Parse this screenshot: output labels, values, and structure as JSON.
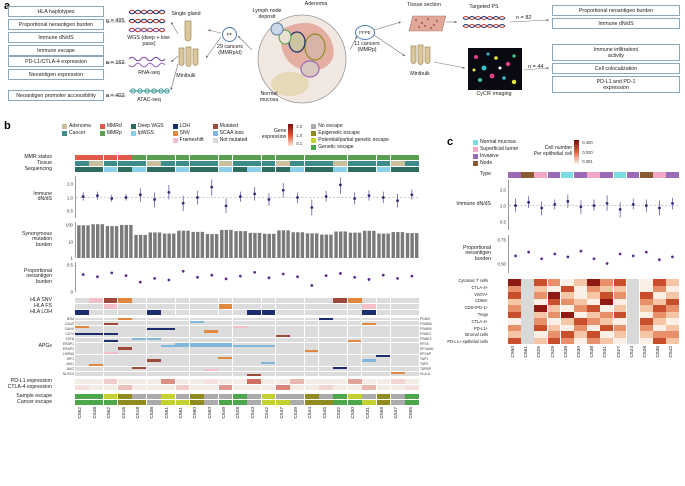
{
  "panel_a": {
    "label": "a",
    "wgs_outputs": [
      "HLA haplotypes",
      "Proportional neoantigen burden",
      "Immune dN/dS",
      "Immune escape"
    ],
    "wgs_n": "n = 495",
    "wgs_method": "WGS (deep + low-pass)",
    "rna_outputs": [
      "PD-L1/CTLA-4 expression",
      "Neoantigen expression"
    ],
    "rna_n": "n = 162",
    "rna_method": "RNA-seq",
    "atac_outputs": [
      "Neoantigen promoter accessibility"
    ],
    "atac_n": "n = 402",
    "atac_method": "ATAC-seq",
    "single_gland": "Single gland",
    "minibulk_left": "Minibulk",
    "ff": "FF",
    "ff_cancers": "29 cancers\n(MMRp/d)",
    "adenoma": "Adenoma",
    "lymph_node": "Lymph node\ndeposit",
    "normal_mucosa": "Normal\nmucosa",
    "ffpe": "FFPE",
    "ffpe_cancers": "11 cancers\n(MMRp)",
    "tissue_section": "Tissue section",
    "minibulk_right": "Minibulk",
    "targeted_ps": "Targeted PS",
    "ps_n": "n = 82",
    "ps_outputs": [
      "Proportional neoantigen burden",
      "Immune dN/dS"
    ],
    "cycif": "CyCIF imaging",
    "cycif_n": "n = 44",
    "cycif_outputs": [
      "Immune infiltration/\nactivity",
      "Cell colocalization",
      "PD-L1 and PD-1\nexpression"
    ]
  },
  "panel_b": {
    "label": "b",
    "palette": {
      "adenoma": "#c9bf9c",
      "cancer": "#3d8c8c",
      "mmrd": "#e0584a",
      "mmrp": "#5ba052",
      "deep": "#2f6b5e",
      "lp": "#8ad0e8",
      "loh": "#1b2e6b",
      "snv": "#e08840",
      "fs": "#f2bfc9",
      "mut": "#9e4a3a",
      "scaa": "#7fb8dc",
      "notmut": "#dcdcdc",
      "none": "#ababab",
      "epi": "#8f8b1e",
      "partial": "#c3d232",
      "genetic": "#4ca64c"
    },
    "legend_groups": [
      [
        {
          "label": "Adenoma",
          "color": "#c9bf9c"
        },
        {
          "label": "Cancer",
          "color": "#3d8c8c"
        }
      ],
      [
        {
          "label": "MMRd",
          "color": "#e0584a"
        },
        {
          "label": "MMRp",
          "color": "#5ba052"
        }
      ],
      [
        {
          "label": "Deep WGS",
          "color": "#2f6b5e"
        },
        {
          "label": "lpWGS",
          "color": "#8ad0e8"
        }
      ],
      [
        {
          "label": "LOH",
          "color": "#1b2e6b"
        },
        {
          "label": "SNV",
          "color": "#e08840"
        },
        {
          "label": "Frameshift",
          "color": "#f2bfc9"
        }
      ],
      [
        {
          "label": "Mutated",
          "color": "#9e4a3a"
        },
        {
          "label": "SCAA loss",
          "color": "#7fb8dc"
        },
        {
          "label": "Not mutated",
          "color": "#dcdcdc"
        }
      ]
    ],
    "escape_legend": [
      {
        "label": "No escape",
        "color": "#ababab"
      },
      {
        "label": "Epigenetic escape",
        "color": "#8f8b1e"
      },
      {
        "label": "Potential/partial genetic escape",
        "color": "#c3d232"
      },
      {
        "label": "Genetic escape",
        "color": "#4ca64c"
      }
    ],
    "expression_legend": {
      "title": "Gene\nexpression",
      "ticks": [
        "2.0",
        "1.0",
        "0.1"
      ],
      "colors": [
        "#7a0c0c",
        "#e05030",
        "#fce8dc"
      ]
    },
    "labels": {
      "mmr": "MMR status",
      "tissue": "Tissue",
      "seq": "Sequencing",
      "dnds": "Immune\ndN/dS",
      "burden": "Synonymous\nmutation\nburden",
      "neo": "Proportional\nneoantigen\nburden",
      "hla_snv": "HLA SNV",
      "hla_fs": "HLA FS",
      "hla_loh": "HLA LOH",
      "apgs": "APGs",
      "pdl1": "PD-L1 expression",
      "ctla4": "CTLA-4 expression",
      "sample_escape": "Sample escape",
      "cancer_escape": "Cancer escape"
    },
    "samples": [
      "C552",
      "C548",
      "C562",
      "C516",
      "C518",
      "C538",
      "C551",
      "C561",
      "C560",
      "C550",
      "C549",
      "C528",
      "C543",
      "C542",
      "C537",
      "C539",
      "C544",
      "C545",
      "C532",
      "C530",
      "C531",
      "C559",
      "C547",
      "C555"
    ],
    "mmr": [
      "mmrd",
      "mmrd",
      "mmrd",
      "mmrd",
      "mmrp",
      "mmrp",
      "mmrp",
      "mmrp",
      "mmrp",
      "mmrp",
      "mmrp",
      "mmrp",
      "mmrp",
      "mmrp",
      "mmrp",
      "mmrp",
      "mmrp",
      "mmrp",
      "mmrp",
      "mmrp",
      "mmrp",
      "mmrp",
      "mmrp",
      "mmrp"
    ],
    "tissue": [
      "cancer",
      "adenoma",
      "cancer",
      "cancer",
      "cancer",
      "adenoma",
      "cancer",
      "cancer",
      "cancer",
      "cancer",
      "adenoma",
      "cancer",
      "cancer",
      "cancer",
      "adenoma",
      "cancer",
      "cancer",
      "cancer",
      "adenoma",
      "cancer",
      "cancer",
      "cancer",
      "adenoma",
      "cancer"
    ],
    "seq": [
      "deep",
      "deep",
      "lp",
      "deep",
      "lp",
      "deep",
      "deep",
      "lp",
      "deep",
      "deep",
      "lp",
      "deep",
      "lp",
      "deep",
      "deep",
      "lp",
      "deep",
      "deep",
      "lp",
      "deep",
      "deep",
      "lp",
      "deep",
      "deep"
    ],
    "dnds_ticks": [
      2.0,
      1.0,
      0.5
    ],
    "dnds": [
      [
        1.05,
        0.85,
        1.3
      ],
      [
        1.1,
        0.9,
        1.35
      ],
      [
        0.95,
        0.8,
        1.15
      ],
      [
        1.0,
        0.85,
        1.2
      ],
      [
        1.15,
        0.8,
        1.6
      ],
      [
        0.9,
        0.6,
        1.3
      ],
      [
        1.3,
        0.9,
        1.9
      ],
      [
        0.75,
        0.5,
        1.1
      ],
      [
        1.0,
        0.7,
        1.4
      ],
      [
        1.7,
        1.1,
        2.5
      ],
      [
        0.65,
        0.45,
        0.95
      ],
      [
        1.05,
        0.8,
        1.35
      ],
      [
        1.2,
        0.85,
        1.7
      ],
      [
        0.9,
        0.65,
        1.25
      ],
      [
        1.45,
        1.0,
        2.1
      ],
      [
        1.0,
        0.75,
        1.3
      ],
      [
        0.6,
        0.4,
        0.9
      ],
      [
        1.05,
        0.8,
        1.4
      ],
      [
        1.9,
        1.2,
        2.8
      ],
      [
        0.95,
        0.7,
        1.3
      ],
      [
        1.1,
        0.85,
        1.45
      ],
      [
        1.0,
        0.75,
        1.35
      ],
      [
        0.85,
        0.6,
        1.2
      ],
      [
        1.15,
        0.9,
        1.5
      ]
    ],
    "burden_ticks": [
      100,
      10,
      1
    ],
    "burden": [
      95,
      110,
      85,
      100,
      25,
      35,
      30,
      45,
      38,
      28,
      50,
      42,
      33,
      29,
      47,
      36,
      31,
      26,
      40,
      34,
      44,
      30,
      37,
      32
    ],
    "neo_ticks": [
      0.5,
      0
    ],
    "neo": [
      0.32,
      0.28,
      0.35,
      0.3,
      0.18,
      0.25,
      0.22,
      0.38,
      0.27,
      0.31,
      0.24,
      0.29,
      0.36,
      0.26,
      0.33,
      0.28,
      0.12,
      0.3,
      0.34,
      0.27,
      0.23,
      0.31,
      0.25,
      0.29
    ],
    "hla_snv": [
      [
        1,
        "fs"
      ],
      [
        2,
        "mut"
      ],
      [
        3,
        "snv"
      ],
      [
        18,
        "mut"
      ],
      [
        19,
        "snv"
      ]
    ],
    "hla_fs": [
      [
        2,
        "fs"
      ],
      [
        10,
        "snv"
      ],
      [
        20,
        "fs"
      ]
    ],
    "hla_loh": [
      [
        0,
        "loh"
      ],
      [
        5,
        "loh"
      ],
      [
        12,
        "loh"
      ],
      [
        13,
        "loh"
      ],
      [
        20,
        "loh"
      ]
    ],
    "genes_left": [
      "B2M",
      "CALR",
      "CANX",
      "CD74",
      "CIITA",
      "ERAP1",
      "ERAP2",
      "HSPA5",
      "IRF1",
      "JAK1",
      "JAK2",
      "NLRC5"
    ],
    "genes_right": [
      "PDIA3",
      "PSMB8",
      "PSMB9",
      "PSME1",
      "PSME2",
      "RFX5",
      "RFXANK",
      "RFXAP",
      "TAP1",
      "TAP2",
      "TAPBP",
      "HLA-A"
    ],
    "apg_rows": 24,
    "apg_cells": [
      [
        0,
        3,
        "snv"
      ],
      [
        0,
        17,
        "loh"
      ],
      [
        1,
        8,
        "scaa"
      ],
      [
        2,
        2,
        "mut"
      ],
      [
        2,
        20,
        "snv"
      ],
      [
        3,
        0,
        "snv"
      ],
      [
        3,
        11,
        "fs"
      ],
      [
        4,
        5,
        "loh"
      ],
      [
        4,
        6,
        "loh"
      ],
      [
        5,
        9,
        "snv"
      ],
      [
        6,
        0,
        "loh"
      ],
      [
        6,
        1,
        "loh"
      ],
      [
        6,
        2,
        "loh"
      ],
      [
        7,
        14,
        "mut"
      ],
      [
        8,
        4,
        "scaa"
      ],
      [
        8,
        5,
        "scaa"
      ],
      [
        9,
        2,
        "loh"
      ],
      [
        9,
        19,
        "snv"
      ],
      [
        10,
        7,
        "scaa"
      ],
      [
        10,
        8,
        "scaa"
      ],
      [
        10,
        9,
        "scaa"
      ],
      [
        10,
        10,
        "scaa"
      ],
      [
        11,
        6,
        "scaa"
      ],
      [
        11,
        7,
        "scaa"
      ],
      [
        11,
        8,
        "scaa"
      ],
      [
        11,
        9,
        "scaa"
      ],
      [
        11,
        10,
        "scaa"
      ],
      [
        11,
        11,
        "scaa"
      ],
      [
        11,
        12,
        "scaa"
      ],
      [
        11,
        13,
        "scaa"
      ],
      [
        12,
        3,
        "mut"
      ],
      [
        13,
        16,
        "snv"
      ],
      [
        14,
        2,
        "fs"
      ],
      [
        15,
        21,
        "loh"
      ],
      [
        16,
        10,
        "snv"
      ],
      [
        17,
        5,
        "mut"
      ],
      [
        17,
        20,
        "scaa"
      ],
      [
        18,
        13,
        "scaa"
      ],
      [
        19,
        1,
        "snv"
      ],
      [
        20,
        4,
        "mut"
      ],
      [
        20,
        18,
        "loh"
      ],
      [
        21,
        9,
        "fs"
      ],
      [
        22,
        22,
        "snv"
      ],
      [
        23,
        12,
        "mut"
      ]
    ],
    "pdl1": [
      0,
      0,
      0.25,
      0,
      0,
      0,
      0.55,
      0,
      0,
      0.15,
      0,
      0,
      0.7,
      0,
      0,
      0.35,
      0,
      0,
      0,
      0.45,
      0,
      0,
      0.2,
      0
    ],
    "ctla4": [
      0.15,
      0,
      0,
      0.3,
      0,
      0,
      0,
      0.25,
      0,
      0,
      0.5,
      0,
      0,
      0,
      0.6,
      0,
      0,
      0.2,
      0,
      0,
      0.35,
      0,
      0,
      0.15
    ],
    "sample_escape": [
      "genetic",
      "genetic",
      "partial",
      "epi",
      "none",
      "none",
      "partial",
      "none",
      "epi",
      "none",
      "none",
      "genetic",
      "none",
      "partial",
      "none",
      "none",
      "epi",
      "none",
      "genetic",
      "partial",
      "none",
      "epi",
      "none",
      "genetic"
    ],
    "cancer_escape": [
      "genetic",
      "genetic",
      "genetic",
      "epi",
      "epi",
      "none",
      "partial",
      "partial",
      "epi",
      "none",
      "genetic",
      "genetic",
      "none",
      "partial",
      "partial",
      "none",
      "epi",
      "epi",
      "genetic",
      "genetic",
      "partial",
      "epi",
      "none",
      "genetic"
    ]
  },
  "panel_c": {
    "label": "c",
    "palette": {
      "normal": "#7adce0",
      "superficial": "#f2a7c6",
      "invasive": "#9c6bb5",
      "node": "#8a5a33"
    },
    "legend": [
      {
        "label": "Normal mucosa",
        "color": "#7adce0"
      },
      {
        "label": "Superficial tumor",
        "color": "#f2a7c6"
      },
      {
        "label": "Invasive",
        "color": "#9c6bb5"
      },
      {
        "label": "Node",
        "color": "#8a5a33"
      }
    ],
    "cellnum_legend": {
      "title": "Cell number\nPer epithelial cell",
      "ticks": [
        "0.400",
        "0.020",
        "0.001"
      ],
      "colors": [
        "#7a0c0c",
        "#e06040",
        "#fdf3ee"
      ]
    },
    "labels": {
      "type": "Type",
      "dnds": "Immune dN/dS",
      "neo": "Proportional\nneoantigen\nburden"
    },
    "samples": [
      "C550",
      "C561",
      "C525",
      "C529",
      "C539",
      "C530",
      "C538",
      "C531",
      "C527",
      "C524",
      "C528",
      "C536",
      "C542"
    ],
    "type": [
      "invasive",
      "node",
      "superficial",
      "invasive",
      "normal",
      "invasive",
      "superficial",
      "invasive",
      "normal",
      "invasive",
      "node",
      "superficial",
      "invasive"
    ],
    "dnds_ticks": [
      2.0,
      1.0,
      0.5
    ],
    "dnds": [
      [
        1.0,
        0.75,
        1.35
      ],
      [
        1.15,
        0.9,
        1.5
      ],
      [
        0.9,
        0.65,
        1.2
      ],
      [
        1.05,
        0.85,
        1.3
      ],
      [
        1.2,
        0.9,
        1.6
      ],
      [
        0.95,
        0.7,
        1.25
      ],
      [
        1.0,
        0.8,
        1.3
      ],
      [
        1.1,
        0.8,
        1.55
      ],
      [
        0.85,
        0.6,
        1.15
      ],
      [
        1.05,
        0.85,
        1.35
      ],
      [
        1.0,
        0.75,
        1.3
      ],
      [
        0.9,
        0.65,
        1.25
      ],
      [
        1.1,
        0.85,
        1.4
      ]
    ],
    "neo_ticks": [
      0.75,
      0.5
    ],
    "neo": [
      0.58,
      0.62,
      0.55,
      0.6,
      0.57,
      0.63,
      0.55,
      0.5,
      0.6,
      0.58,
      0.62,
      0.54,
      0.57
    ],
    "rows": [
      "Cytotoxic T cells",
      "CTLA-4+",
      "VISTA+",
      "CD68+",
      "CD8+/PD-1+",
      "Tregs",
      "CTLA-4+",
      "PD-L1+",
      "Stromal cells",
      "PD-L1+ epithelial cells"
    ],
    "heatmap": [
      "4x3201423x031",
      "2x1030211x020",
      "3x2410132x301",
      "1x0321040x213",
      "2x4102301x132",
      "3x1240123x021",
      "0x2013210x310",
      "2x3102032x201",
      "1x0231301x122",
      "3x1320210x031"
    ]
  }
}
